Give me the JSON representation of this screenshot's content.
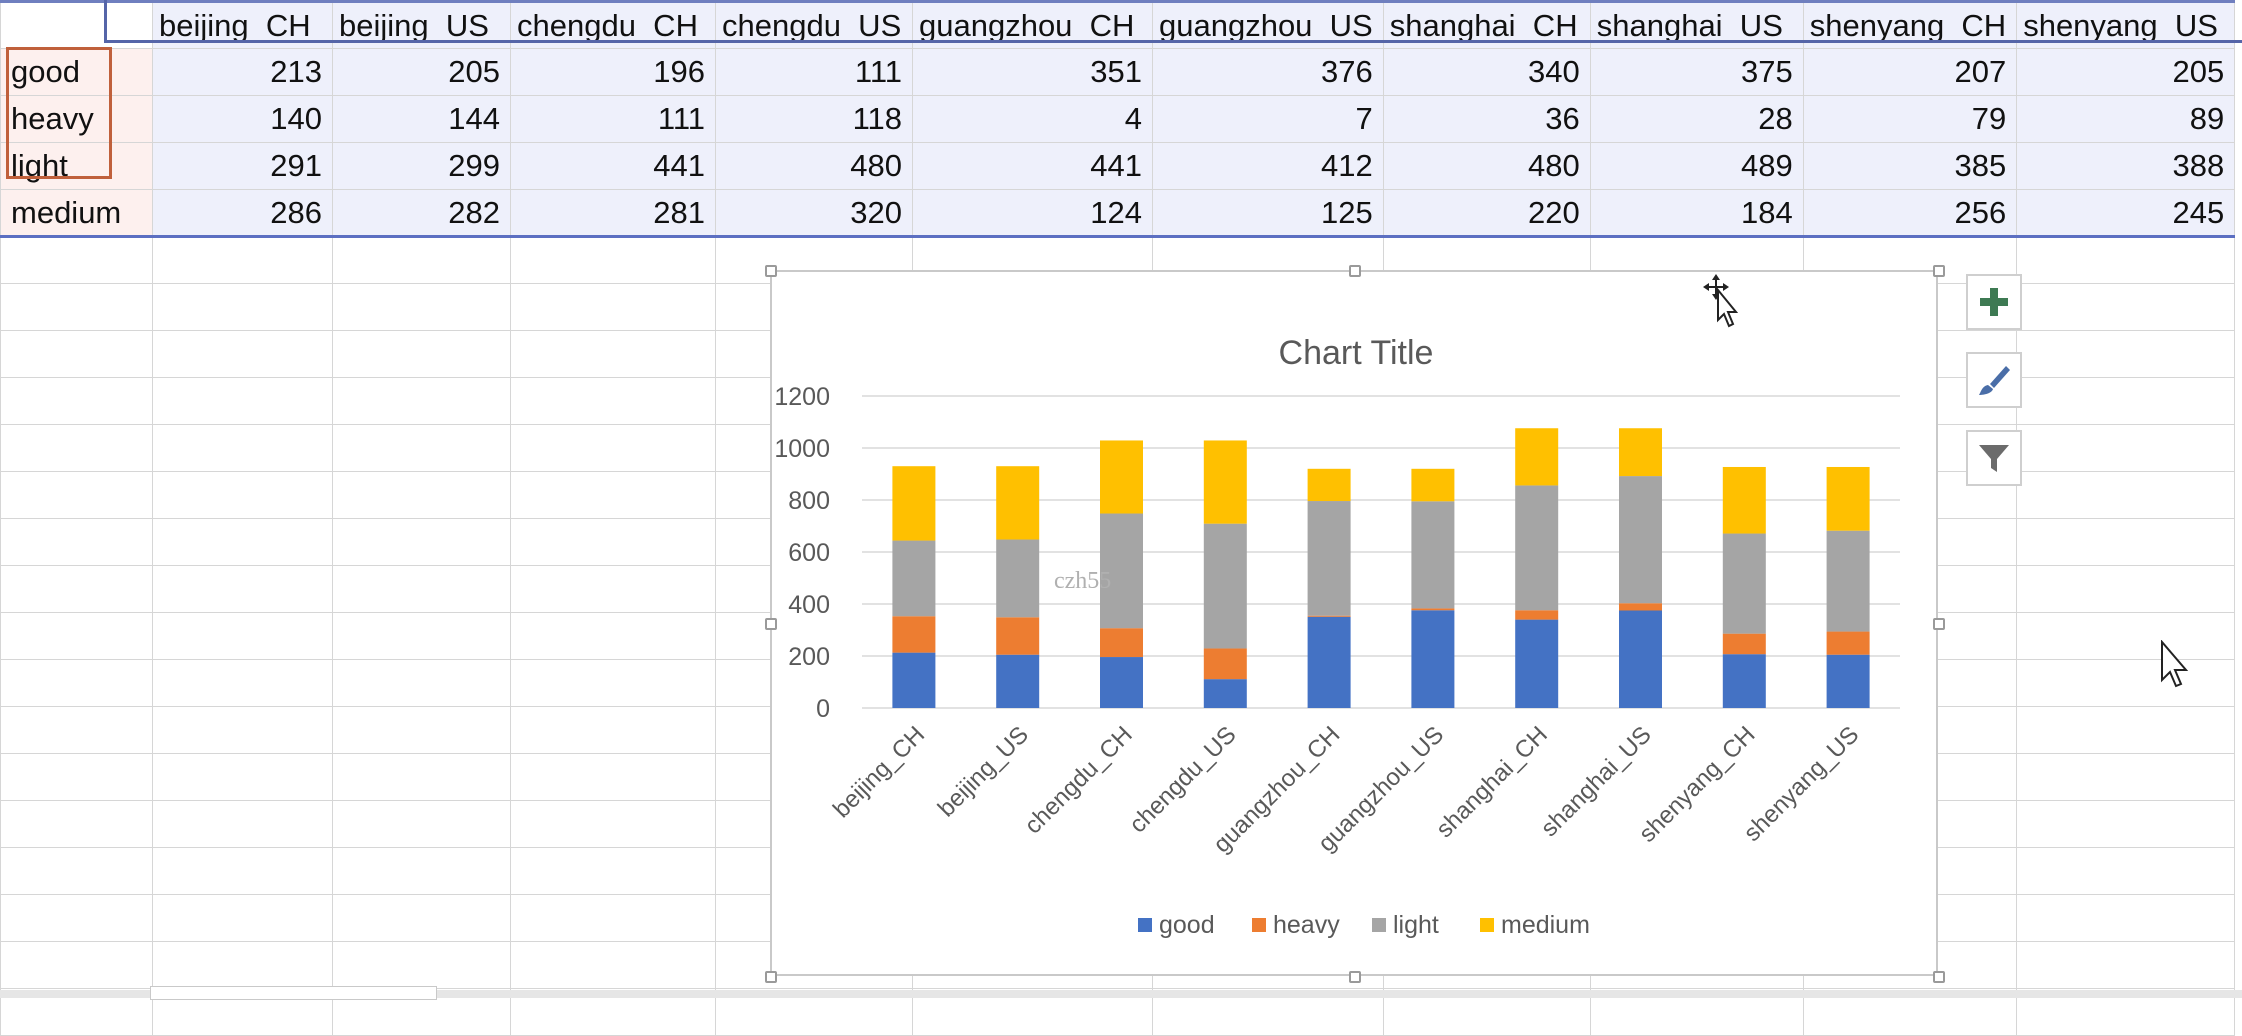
{
  "sheet": {
    "columns": [
      "beijing_CH",
      "beijing_US",
      "chengdu_CH",
      "chengdu_US",
      "guangzhou_CH",
      "guangzhou_US",
      "shanghai_CH",
      "shanghai_US",
      "shenyang_CH",
      "shenyang_US"
    ],
    "rows": [
      {
        "label": "good",
        "values": [
          213,
          205,
          196,
          111,
          351,
          376,
          340,
          375,
          207,
          205
        ]
      },
      {
        "label": "heavy",
        "values": [
          140,
          144,
          111,
          118,
          4,
          7,
          36,
          28,
          79,
          89
        ]
      },
      {
        "label": "light",
        "values": [
          291,
          299,
          441,
          480,
          441,
          412,
          480,
          489,
          385,
          388
        ]
      },
      {
        "label": "medium",
        "values": [
          286,
          282,
          281,
          320,
          124,
          125,
          220,
          184,
          256,
          245
        ]
      }
    ]
  },
  "chart_data": {
    "type": "bar",
    "stacked": true,
    "title": "Chart Title",
    "categories": [
      "beijing_CH",
      "beijing_US",
      "chengdu_CH",
      "chengdu_US",
      "guangzhou_CH",
      "guangzhou_US",
      "shanghai_CH",
      "shanghai_US",
      "shenyang_CH",
      "shenyang_US"
    ],
    "series": [
      {
        "name": "good",
        "color": "#4472c4",
        "values": [
          213,
          205,
          196,
          111,
          351,
          376,
          340,
          375,
          207,
          205
        ]
      },
      {
        "name": "heavy",
        "color": "#ed7d31",
        "values": [
          140,
          144,
          111,
          118,
          4,
          7,
          36,
          28,
          79,
          89
        ]
      },
      {
        "name": "light",
        "color": "#a5a5a5",
        "values": [
          291,
          299,
          441,
          480,
          441,
          412,
          480,
          489,
          385,
          388
        ]
      },
      {
        "name": "medium",
        "color": "#ffc000",
        "values": [
          286,
          282,
          281,
          320,
          124,
          125,
          220,
          184,
          256,
          245
        ]
      }
    ],
    "yticks": [
      0,
      200,
      400,
      600,
      800,
      1000,
      1200
    ],
    "ylim": [
      0,
      1200
    ],
    "grid": true,
    "legend_position": "bottom"
  },
  "watermark": "czh55",
  "chart_buttons": [
    "plus-icon",
    "brush-icon",
    "filter-icon"
  ]
}
